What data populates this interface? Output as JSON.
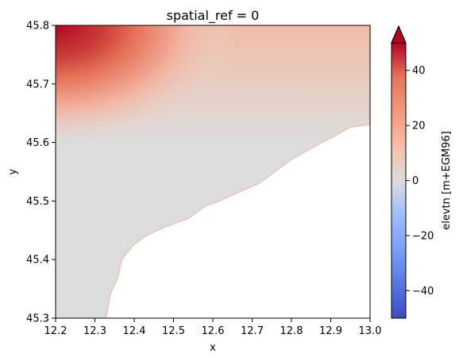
{
  "chart_data": {
    "type": "heatmap",
    "title": "spatial_ref = 0",
    "xlabel": "x",
    "ylabel": "y",
    "xlim": [
      12.2,
      13.0
    ],
    "ylim": [
      45.3,
      45.8
    ],
    "x_ticks": [
      "12.2",
      "12.3",
      "12.4",
      "12.5",
      "12.6",
      "12.7",
      "12.8",
      "12.9",
      "13.0"
    ],
    "x_tick_values": [
      12.2,
      12.3,
      12.4,
      12.5,
      12.6,
      12.7,
      12.8,
      12.9,
      13.0
    ],
    "y_ticks": [
      "45.3",
      "45.4",
      "45.5",
      "45.6",
      "45.7",
      "45.8"
    ],
    "y_tick_values": [
      45.3,
      45.4,
      45.5,
      45.6,
      45.7,
      45.8
    ],
    "grid": false,
    "colorbar": {
      "label": "elevtn [m+EGM96]",
      "colormap": "coolwarm",
      "vmin": -50,
      "vmax": 50,
      "extend": "max",
      "ticks": [
        "40",
        "20",
        "0",
        "−20",
        "−40"
      ],
      "tick_values": [
        40,
        20,
        0,
        -20,
        -40
      ]
    },
    "colors": {
      "no_data": "#ffffff",
      "near_zero": "#dcdcdc",
      "high": "#b40426"
    },
    "coastline": [
      [
        12.33,
        45.3
      ],
      [
        12.34,
        45.34
      ],
      [
        12.36,
        45.37
      ],
      [
        12.37,
        45.4
      ],
      [
        12.4,
        45.425
      ],
      [
        12.43,
        45.44
      ],
      [
        12.48,
        45.455
      ],
      [
        12.54,
        45.47
      ],
      [
        12.58,
        45.49
      ],
      [
        12.62,
        45.5
      ],
      [
        12.67,
        45.515
      ],
      [
        12.72,
        45.53
      ],
      [
        12.76,
        45.55
      ],
      [
        12.8,
        45.57
      ],
      [
        12.84,
        45.585
      ],
      [
        12.88,
        45.6
      ],
      [
        12.91,
        45.61
      ],
      [
        12.95,
        45.625
      ],
      [
        13.0,
        45.63
      ]
    ]
  }
}
